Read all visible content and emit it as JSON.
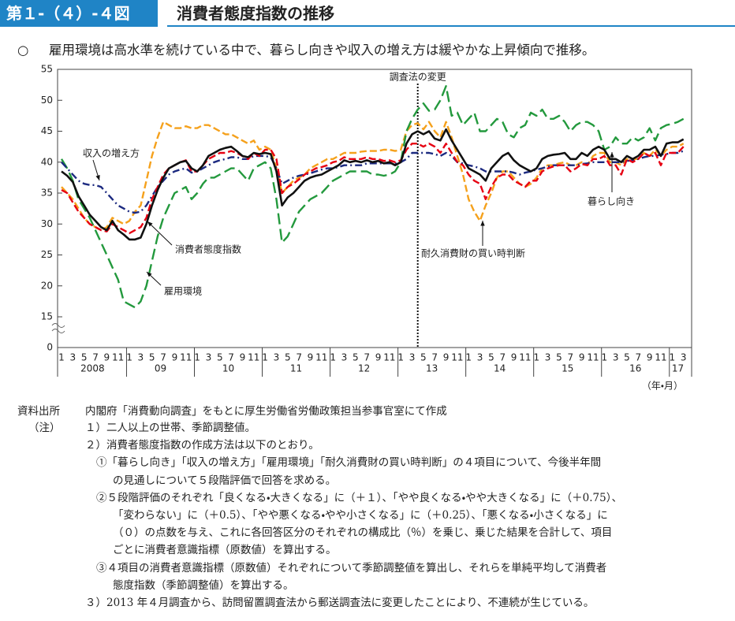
{
  "header": {
    "figure_no": "第１-（４）-４図",
    "title": "消費者態度指数の推移",
    "subtitle": "雇用環境は高水準を続けている中で、暮らし向きや収入の増え方は緩やかな上昇傾向で推移。"
  },
  "chart_data": {
    "type": "line",
    "categories": [
      "1",
      null,
      "3",
      null,
      "5",
      null,
      "7",
      null,
      "9",
      null,
      "11",
      null,
      "1",
      null,
      "3",
      null,
      "5",
      null,
      "7",
      null,
      "9",
      null,
      "11",
      null,
      "1",
      null,
      "3",
      null,
      "5",
      null,
      "7",
      null,
      "9",
      null,
      "11",
      null,
      "1",
      null,
      "3",
      null,
      "5",
      null,
      "7",
      null,
      "9",
      null,
      "11",
      null,
      "1",
      null,
      "3",
      null,
      "5",
      null,
      "7",
      null,
      "9",
      null,
      "11",
      null,
      "1",
      null,
      "3",
      null,
      "5",
      null,
      "7",
      null,
      "9",
      null,
      "11",
      null,
      "1",
      null,
      "3",
      null,
      "5",
      null,
      "7",
      null,
      "9",
      null,
      "11",
      null,
      "1",
      null,
      "3",
      null,
      "5",
      null,
      "7",
      null,
      "9",
      null,
      "11",
      null,
      "1",
      null,
      "3",
      null,
      "5",
      null,
      "7",
      null,
      "9",
      null,
      "11",
      null,
      "1",
      null,
      "3"
    ],
    "x_groups": [
      "2008",
      "09",
      "10",
      "11",
      "12",
      "13",
      "14",
      "15",
      "16",
      "17"
    ],
    "x_unit": "（年・月）",
    "ylim": [
      0,
      55
    ],
    "yticks": [
      0,
      15,
      20,
      25,
      30,
      35,
      40,
      45,
      50,
      55
    ],
    "axis_break": [
      0,
      15
    ],
    "grid": false,
    "annotation": "調査法の変更",
    "annotation_index": 63,
    "series": [
      {
        "name": "消費者態度指数",
        "color": "#111111",
        "line_style": "solid",
        "values": [
          38.5,
          37.8,
          36.8,
          34.5,
          33,
          31.5,
          30.5,
          29.5,
          29,
          30.5,
          29,
          28.3,
          27.5,
          27.5,
          27.8,
          30,
          33,
          35.5,
          37.5,
          39,
          39.5,
          40,
          40.2,
          39,
          38.5,
          39.5,
          41,
          41.5,
          42,
          42.3,
          42.5,
          41.8,
          41,
          40.8,
          41.5,
          41.3,
          41.5,
          41.3,
          38.5,
          33,
          34.3,
          35,
          36,
          37,
          37.5,
          37.8,
          38,
          38.5,
          39,
          39.5,
          40.3,
          40,
          40.2,
          40,
          40.3,
          40,
          40.2,
          39.8,
          40,
          39.5,
          40,
          43,
          44.5,
          45,
          44.5,
          45,
          43.8,
          43.5,
          45.3,
          43.5,
          42,
          40.5,
          39,
          38.5,
          38,
          37,
          39,
          40,
          41,
          41.5,
          40.3,
          39.5,
          39,
          38.5,
          39,
          40.5,
          41,
          41.2,
          41.3,
          41.5,
          40.5,
          40.5,
          41.5,
          41,
          42,
          42.5,
          42,
          40.5,
          40.5,
          40,
          41,
          40.5,
          41,
          42,
          42,
          42.5,
          41,
          43,
          43.2,
          43.2,
          43.7
        ]
      },
      {
        "name": "暮らし向き",
        "color": "#e60012",
        "line_style": "dashed",
        "values": [
          35.5,
          35,
          33.5,
          32,
          31,
          30,
          29.5,
          29,
          28.8,
          30,
          29.5,
          29,
          28.5,
          29,
          29.5,
          31,
          34,
          36,
          38,
          39,
          39.5,
          40,
          40.3,
          38.5,
          38.5,
          39.5,
          40.5,
          41,
          41.5,
          41.5,
          41.8,
          41.5,
          41,
          40.5,
          41.5,
          41,
          42,
          42,
          40.5,
          35,
          36,
          36.5,
          37.2,
          38,
          38.5,
          39,
          39.2,
          39.5,
          40,
          40.2,
          40.8,
          40.5,
          40.5,
          40.5,
          40.8,
          40.5,
          40.5,
          40.2,
          40.3,
          40,
          40.3,
          42,
          43,
          43,
          42.5,
          43,
          42.5,
          41.5,
          43,
          41.5,
          40,
          39.5,
          38,
          37,
          36.5,
          34,
          36,
          37.5,
          38,
          38,
          37,
          36.5,
          36,
          37,
          37,
          38.5,
          39,
          39.3,
          39.5,
          39.5,
          38.5,
          39,
          39.7,
          39.5,
          40.5,
          40.5,
          41,
          39.5,
          39.5,
          38,
          40.5,
          40,
          40.5,
          41.5,
          41,
          41.5,
          39.5,
          41.5,
          41.5,
          41.5,
          42.5
        ]
      },
      {
        "name": "収入の増え方",
        "color": "#1c2a80",
        "line_style": "dash-dot",
        "values": [
          40,
          39,
          38,
          37,
          36.5,
          36.3,
          36.3,
          36,
          35,
          34,
          33,
          32.5,
          32,
          31.8,
          32,
          33,
          34.5,
          36,
          37,
          38,
          38.5,
          38.8,
          39,
          38.3,
          38.5,
          39,
          39.5,
          40,
          40.3,
          40.5,
          40.8,
          40.8,
          40.5,
          40.5,
          41,
          41,
          41,
          40.8,
          39,
          36.5,
          37,
          37.5,
          37.8,
          38,
          38.2,
          38.5,
          38.8,
          39,
          39,
          39.2,
          39.5,
          39.5,
          39.5,
          39.5,
          39.8,
          39.8,
          39.8,
          39.8,
          39.8,
          39.8,
          40,
          40.5,
          41.5,
          41.5,
          41.5,
          41.5,
          41.3,
          41,
          41.5,
          41,
          40,
          39.8,
          39.5,
          39.3,
          39,
          38.5,
          38.5,
          38.5,
          38.5,
          38.5,
          38.3,
          38,
          38.3,
          38.5,
          38.8,
          39,
          39.3,
          39.5,
          39.5,
          39.5,
          39.5,
          39.5,
          39.7,
          39.8,
          40,
          40,
          40,
          40,
          40,
          40,
          40.2,
          40.3,
          40.5,
          40.8,
          41,
          41,
          41.2,
          41.3,
          41.5,
          41.5,
          41.8
        ]
      },
      {
        "name": "雇用環境",
        "color": "#23993d",
        "line_style": "long-dash",
        "values": [
          40.5,
          39,
          37,
          34,
          32.5,
          31,
          29,
          27,
          25,
          23,
          21,
          17.5,
          17,
          16.5,
          17.5,
          20,
          24,
          28,
          31,
          33,
          35,
          35.5,
          36,
          34,
          35,
          36.5,
          37.5,
          37.5,
          38,
          38.5,
          39,
          39,
          38,
          37,
          39,
          39.5,
          40,
          39,
          34,
          27,
          28,
          30,
          32,
          33,
          34,
          34.5,
          35,
          36,
          37,
          37.5,
          38,
          38.5,
          38.5,
          38.5,
          38.5,
          38,
          38,
          37.8,
          38,
          38.5,
          40,
          45,
          47,
          48.5,
          49.5,
          48.3,
          48.5,
          50,
          52.3,
          47.5,
          48,
          46,
          47,
          48,
          45,
          45,
          46,
          47,
          46.5,
          44.5,
          44,
          45.5,
          46,
          48,
          47.5,
          48.5,
          47,
          47,
          47.5,
          46.5,
          45,
          46,
          46.5,
          46.5,
          46,
          45,
          42,
          42.5,
          44,
          43,
          43,
          44,
          43.5,
          44,
          45.5,
          43.5,
          45.5,
          46,
          46.2,
          46.5,
          47
        ]
      },
      {
        "name": "耐久消費財の買い時判断",
        "color": "#f5a11c",
        "line_style": "dashed",
        "values": [
          36,
          35,
          34,
          32.5,
          31,
          30,
          29.5,
          29,
          29.5,
          31,
          30.5,
          30,
          30.5,
          32,
          33,
          37,
          41,
          44,
          46.5,
          46,
          45.5,
          45.5,
          45.8,
          45.5,
          45.5,
          46,
          46,
          45.5,
          45,
          44.5,
          44.5,
          44,
          43.5,
          43,
          43.5,
          42,
          42.5,
          42,
          39,
          35,
          36,
          37,
          37.5,
          38,
          39,
          39.5,
          40,
          40.5,
          40.5,
          41,
          41.5,
          41.5,
          41.5,
          41.7,
          41.8,
          41.8,
          41.8,
          42,
          42,
          41.8,
          42,
          45,
          46,
          46.3,
          45.3,
          46.5,
          45,
          44,
          46.5,
          44,
          41,
          38,
          34,
          32,
          30.5,
          33,
          35,
          37.5,
          38.5,
          38.5,
          37.5,
          36.5,
          36,
          36.5,
          37.5,
          39,
          39.5,
          39.5,
          39.8,
          40,
          39.5,
          39.5,
          40,
          39.5,
          41,
          41.5,
          41.5,
          40,
          40,
          39.5,
          40.5,
          40.5,
          40.5,
          41.5,
          41,
          42,
          41,
          42,
          42.5,
          42.5,
          43
        ]
      }
    ]
  },
  "notes": {
    "source_label": "資料出所",
    "source": "内閣府「消費動向調査」をもとに厚生労働省労働政策担当参事官室にて作成",
    "notes_label": "（注）",
    "lines": [
      "１）二人以上の世帯、季節調整値。",
      "２）消費者態度指数の作成方法は以下のとおり。",
      "①「暮らし向き」「収入の増え方」「雇用環境」「耐久消費財の買い時判断」の４項目について、今後半年間",
      "の見通しについて５段階評価で回答を求める。",
      "②５段階評価のそれぞれ「良くなる・大きくなる」に（＋１）、「やや良くなる・やや大きくなる」に（＋0.75）、",
      "「変わらない」に（＋0.5）、「やや悪くなる・やや小さくなる」に（＋0.25）、「悪くなる・小さくなる」に",
      "（０）の点数を与え、これに各回答区分のそれぞれの構成比（％）を乗じ、乗じた結果を合計して、項目",
      "ごとに消費者意識指標（原数値）を算出する。",
      "③４項目の消費者意識指標（原数値）それぞれについて季節調整値を算出し、それらを単純平均して消費者",
      "態度指数（季節調整値）を算出する。",
      "３）2013 年４月調査から、訪問留置調査法から郵送調査法に変更したことにより、不連続が生じている。"
    ]
  }
}
